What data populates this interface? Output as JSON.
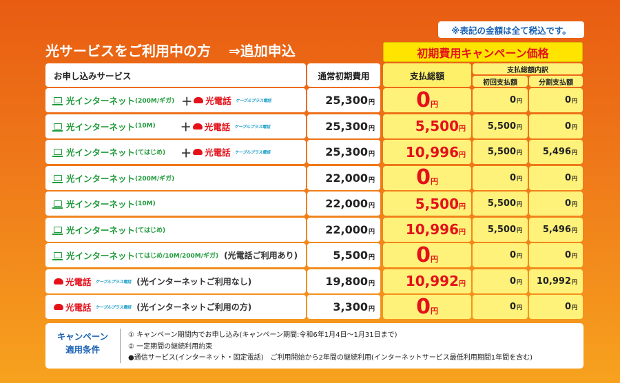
{
  "tax_note": "※表記の金額は全て税込です。",
  "title": {
    "main": "光サービスをご利用中の方",
    "sub": "⇒追加申込"
  },
  "campaign_banner": "初期費用キャンペーン価格",
  "headers": {
    "service": "お申し込みサービス",
    "normal_fee": "通常初期費用",
    "total": "支払総額",
    "breakdown": "支払総額内訳",
    "first": "初回支払額",
    "installment": "分割支払額"
  },
  "labels": {
    "net": "光インターネット",
    "tel": "光電話",
    "cable": "ケーブルプラス電話",
    "plus": "＋",
    "yen": "円"
  },
  "rows": [
    {
      "net_sub": "(200M/ギガ)",
      "tel": true,
      "note": "",
      "normal": "25,300",
      "total": "0",
      "first": "0",
      "installment": "0"
    },
    {
      "net_sub": "(10M)",
      "tel": true,
      "note": "",
      "normal": "25,300",
      "total": "5,500",
      "first": "5,500",
      "installment": "0"
    },
    {
      "net_sub": "(てはじめ)",
      "tel": true,
      "note": "",
      "normal": "25,300",
      "total": "10,996",
      "first": "5,500",
      "installment": "5,496"
    },
    {
      "net_sub": "(200M/ギガ)",
      "tel": false,
      "note": "",
      "normal": "22,000",
      "total": "0",
      "first": "0",
      "installment": "0"
    },
    {
      "net_sub": "(10M)",
      "tel": false,
      "note": "",
      "normal": "22,000",
      "total": "5,500",
      "first": "5,500",
      "installment": "0"
    },
    {
      "net_sub": "(てはじめ)",
      "tel": false,
      "note": "",
      "normal": "22,000",
      "total": "10,996",
      "first": "5,500",
      "installment": "5,496"
    },
    {
      "net_sub": "(てはじめ/10M/200M/ギガ)",
      "tel": false,
      "note": "(光電話ご利用あり)",
      "normal": "5,500",
      "total": "0",
      "first": "0",
      "installment": "0"
    },
    {
      "net_sub": "",
      "tel": true,
      "telOnly": true,
      "note": "(光インターネットご利用なし)",
      "normal": "19,800",
      "total": "10,992",
      "first": "0",
      "installment": "10,992"
    },
    {
      "net_sub": "",
      "tel": true,
      "telOnly": true,
      "note": "(光インターネットご利用の方)",
      "normal": "3,300",
      "total": "0",
      "first": "0",
      "installment": "0"
    }
  ],
  "conditions": {
    "title_line1": "キャンペーン",
    "title_line2": "適用条件",
    "items": [
      "① キャンペーン期間内でお申し込み(キャンペーン期間:令和6年1月4日〜1月31日まで)",
      "② 一定期間の継続利用約束",
      "●通信サービス(インターネット・固定電話)　ご利用開始から2年間の継続利用(インターネットサービス最低利用期間1年間を含む)"
    ]
  },
  "colors": {
    "accent_red": "#e4111a",
    "net_green": "#1e9a3a",
    "campaign_yellow": "#ffe400",
    "note_blue": "#1a62b5"
  }
}
